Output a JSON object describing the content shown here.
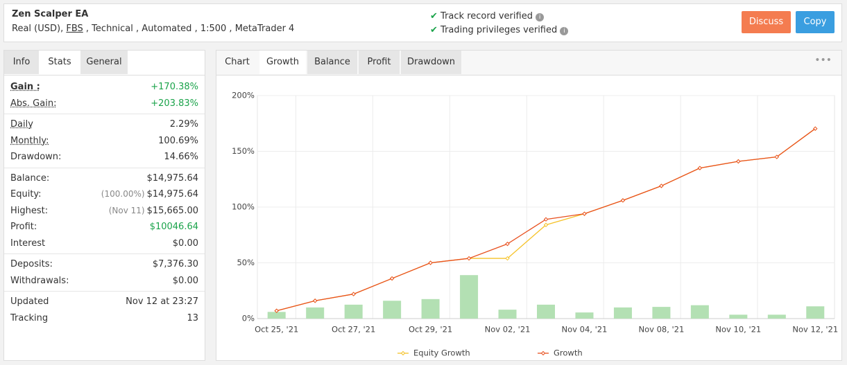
{
  "header": {
    "title": "Zen Scalper EA",
    "subtitle_start": "Real (USD),",
    "broker": "FBS",
    "subtitle_end": ", Technical , Automated , 1:500 , MetaTrader 4",
    "verified": [
      "Track record verified",
      "Trading privileges verified"
    ],
    "buttons": [
      "Discuss",
      "Copy"
    ]
  },
  "left_tabs": [
    "Info",
    "Stats",
    "General"
  ],
  "stats": [
    [
      {
        "label": "Gain :",
        "value": "+170.38%",
        "color": "#1aa34a"
      },
      {
        "label": "Abs. Gain:",
        "value": "+203.83%",
        "color": "#1aa34a"
      }
    ],
    [
      {
        "label": "Daily",
        "value": "2.29%"
      },
      {
        "label": "Monthly:",
        "value": "100.69%"
      },
      {
        "label": "Drawdown:",
        "value": "14.66%"
      }
    ],
    [
      {
        "label": "Balance:",
        "value": "$14,975.64"
      },
      {
        "label": "Equity:",
        "note": "(100.00%)",
        "value": "$14,975.64"
      },
      {
        "label": "Highest:",
        "note": "(Nov 11)",
        "value": "$15,665.00"
      },
      {
        "label": "Profit:",
        "value": "$10046.64",
        "color": "#1aa34a"
      },
      {
        "label": "Interest",
        "value": "$0.00"
      }
    ],
    [
      {
        "label": "Deposits:",
        "value": "$7,376.30"
      },
      {
        "label": "Withdrawals:",
        "value": "$0.00"
      }
    ],
    [
      {
        "label": "Updated",
        "value": "Nov 12 at 23:27"
      },
      {
        "label": "Tracking",
        "value": "13"
      }
    ]
  ],
  "chart_tabs": [
    "Chart",
    "Growth",
    "Balance",
    "Profit",
    "Drawdown"
  ],
  "chart_data": {
    "type": "line",
    "categories": [
      "Oct 25, '21",
      null,
      "Oct 27, '21",
      null,
      "Oct 29, '21",
      null,
      "Nov 02, '21",
      null,
      "Nov 04, '21",
      null,
      "Nov 08, '21",
      null,
      "Nov 10, '21",
      null,
      "Nov 12, '21"
    ],
    "bars": {
      "color": "#b3e0b3",
      "values": [
        6,
        10,
        12.5,
        16,
        17.5,
        39,
        8,
        12.5,
        5.5,
        10,
        10.5,
        12,
        3.5,
        3.5,
        11
      ]
    },
    "series": [
      {
        "name": "Equity Growth",
        "color": "#f5c228",
        "values": [
          7,
          16,
          22,
          36,
          50,
          54,
          54,
          84,
          94,
          106,
          119,
          135,
          141,
          145,
          170.38
        ]
      },
      {
        "name": "Growth",
        "color": "#e8501f",
        "values": [
          7,
          16,
          22,
          36,
          50,
          54,
          67,
          89,
          94,
          106,
          119,
          135,
          141,
          145,
          170.38
        ]
      }
    ],
    "ylim": [
      0,
      200
    ],
    "yticks": [
      {
        "value": 0,
        "label": "0%"
      },
      {
        "value": 50,
        "label": "50%"
      },
      {
        "value": 100,
        "label": "100%"
      },
      {
        "value": 150,
        "label": "150%"
      },
      {
        "value": 200,
        "label": "200%"
      }
    ],
    "grid": true
  }
}
